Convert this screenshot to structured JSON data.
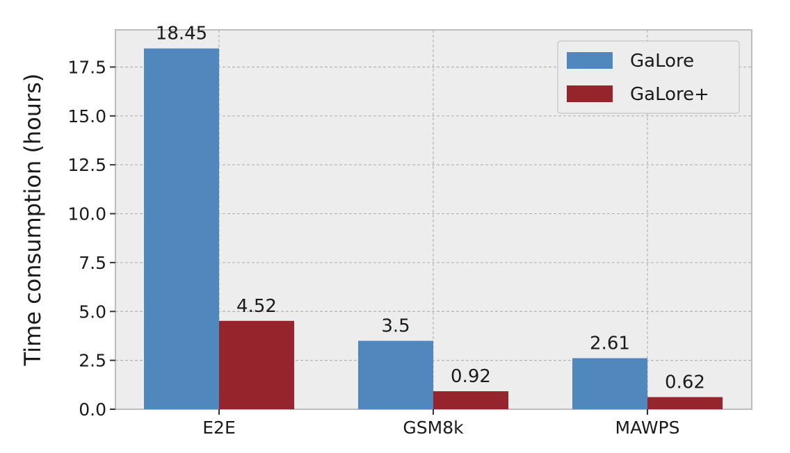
{
  "chart_data": {
    "type": "bar",
    "title": "",
    "xlabel": "",
    "ylabel": "Time consumption (hours)",
    "categories": [
      "E2E",
      "GSM8k",
      "MAWPS"
    ],
    "series": [
      {
        "name": "GaLore",
        "values": [
          18.45,
          3.5,
          2.61
        ],
        "labels": [
          "18.45",
          "3.5",
          "2.61"
        ],
        "color": "#5088bd"
      },
      {
        "name": "GaLore+",
        "values": [
          4.52,
          0.92,
          0.62
        ],
        "labels": [
          "4.52",
          "0.92",
          "0.62"
        ],
        "color": "#96242c"
      }
    ],
    "ylim": [
      0,
      19.4
    ],
    "yticks": [
      0.0,
      2.5,
      5.0,
      7.5,
      10.0,
      12.5,
      15.0,
      17.5
    ],
    "ytick_labels": [
      "0.0",
      "2.5",
      "5.0",
      "7.5",
      "10.0",
      "12.5",
      "15.0",
      "17.5"
    ],
    "grid": true,
    "legend_position": "top-right",
    "background_color": "#ededed"
  }
}
